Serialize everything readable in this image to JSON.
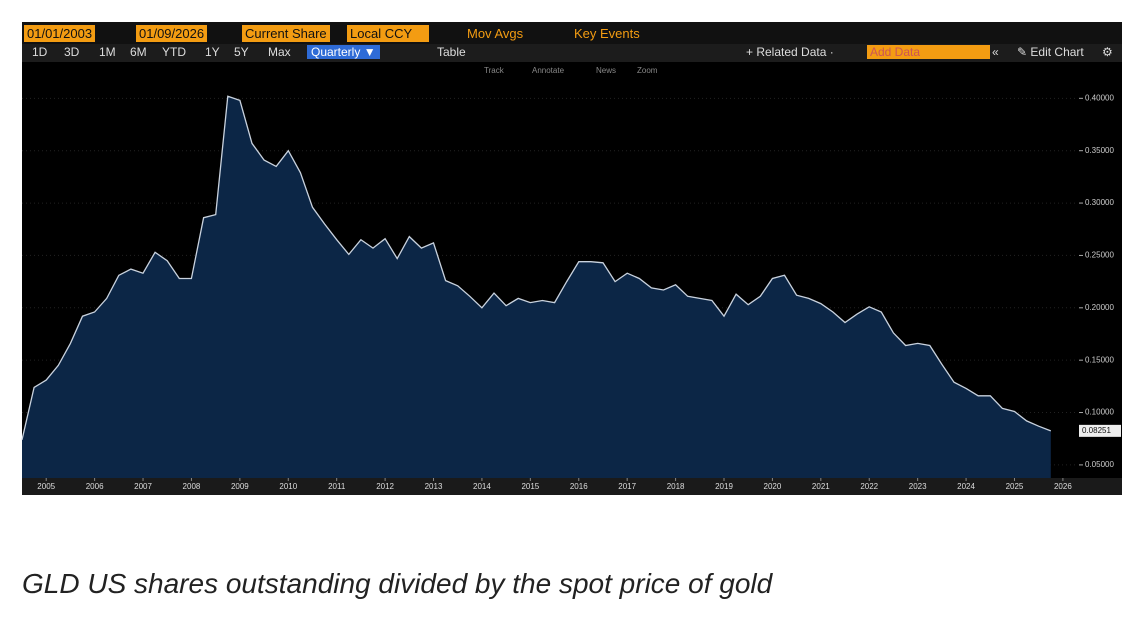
{
  "toolbar": {
    "start_date": "01/01/2003",
    "end_date": "01/09/2026",
    "field": "Current Share",
    "currency": "Local CCY",
    "mov_avgs": "Mov Avgs",
    "key_events": "Key Events",
    "ranges": [
      "1D",
      "3D",
      "1M",
      "6M",
      "YTD",
      "1Y",
      "5Y",
      "Max"
    ],
    "frequency": "Quarterly",
    "table": "Table",
    "related_data": "Related Data",
    "add_data": "Add Data",
    "edit_chart": "Edit Chart",
    "tools": [
      "Track",
      "Annotate",
      "News",
      "Zoom"
    ]
  },
  "caption": "GLD US shares outstanding divided by the spot price of gold",
  "chart_data": {
    "type": "area",
    "color": "#0c2646",
    "line_color": "#c9d2de",
    "x": [
      2004.5,
      2004.75,
      2005,
      2005.25,
      2005.5,
      2005.75,
      2006,
      2006.25,
      2006.5,
      2006.75,
      2007,
      2007.25,
      2007.5,
      2007.75,
      2008,
      2008.25,
      2008.5,
      2008.75,
      2009,
      2009.25,
      2009.5,
      2009.75,
      2010,
      2010.25,
      2010.5,
      2010.75,
      2011,
      2011.25,
      2011.5,
      2011.75,
      2012,
      2012.25,
      2012.5,
      2012.75,
      2013,
      2013.25,
      2013.5,
      2013.75,
      2014,
      2014.25,
      2014.5,
      2014.75,
      2015,
      2015.25,
      2015.5,
      2015.75,
      2016,
      2016.25,
      2016.5,
      2016.75,
      2017,
      2017.25,
      2017.5,
      2017.75,
      2018,
      2018.25,
      2018.5,
      2018.75,
      2019,
      2019.25,
      2019.5,
      2019.75,
      2020,
      2020.25,
      2020.5,
      2020.75,
      2021,
      2021.25,
      2021.5,
      2021.75,
      2022,
      2022.25,
      2022.5,
      2022.75,
      2023,
      2023.25,
      2023.5,
      2023.75,
      2024,
      2024.25,
      2024.5,
      2024.75,
      2025,
      2025.25,
      2025.5,
      2025.75
    ],
    "values": [
      0.074,
      0.124,
      0.131,
      0.145,
      0.166,
      0.192,
      0.196,
      0.209,
      0.231,
      0.237,
      0.233,
      0.253,
      0.245,
      0.228,
      0.228,
      0.286,
      0.289,
      0.402,
      0.398,
      0.357,
      0.341,
      0.335,
      0.35,
      0.329,
      0.296,
      0.28,
      0.265,
      0.251,
      0.265,
      0.257,
      0.266,
      0.247,
      0.268,
      0.257,
      0.262,
      0.226,
      0.221,
      0.211,
      0.2,
      0.214,
      0.202,
      0.209,
      0.205,
      0.207,
      0.205,
      0.225,
      0.244,
      0.244,
      0.243,
      0.225,
      0.233,
      0.228,
      0.219,
      0.217,
      0.222,
      0.211,
      0.209,
      0.207,
      0.192,
      0.213,
      0.203,
      0.211,
      0.228,
      0.231,
      0.212,
      0.209,
      0.204,
      0.196,
      0.186,
      0.194,
      0.201,
      0.196,
      0.176,
      0.164,
      0.166,
      0.164,
      0.146,
      0.129,
      0.123,
      0.116,
      0.116,
      0.104,
      0.101,
      0.092,
      0.087,
      0.08251
    ],
    "xlim": [
      2004.5,
      2026.25
    ],
    "xticks": [
      2005,
      2006,
      2007,
      2008,
      2009,
      2010,
      2011,
      2012,
      2013,
      2014,
      2015,
      2016,
      2017,
      2018,
      2019,
      2020,
      2021,
      2022,
      2023,
      2024,
      2025,
      2026
    ],
    "ylim": [
      0.0375,
      0.4175
    ],
    "yticks": [
      {
        "value": 0.05,
        "label": "0.05000"
      },
      {
        "value": 0.1,
        "label": "0.10000"
      },
      {
        "value": 0.15,
        "label": "0.15000"
      },
      {
        "value": 0.2,
        "label": "0.20000"
      },
      {
        "value": 0.25,
        "label": "0.25000"
      },
      {
        "value": 0.3,
        "label": "0.30000"
      },
      {
        "value": 0.35,
        "label": "0.35000"
      },
      {
        "value": 0.4,
        "label": "0.40000"
      }
    ]
  }
}
